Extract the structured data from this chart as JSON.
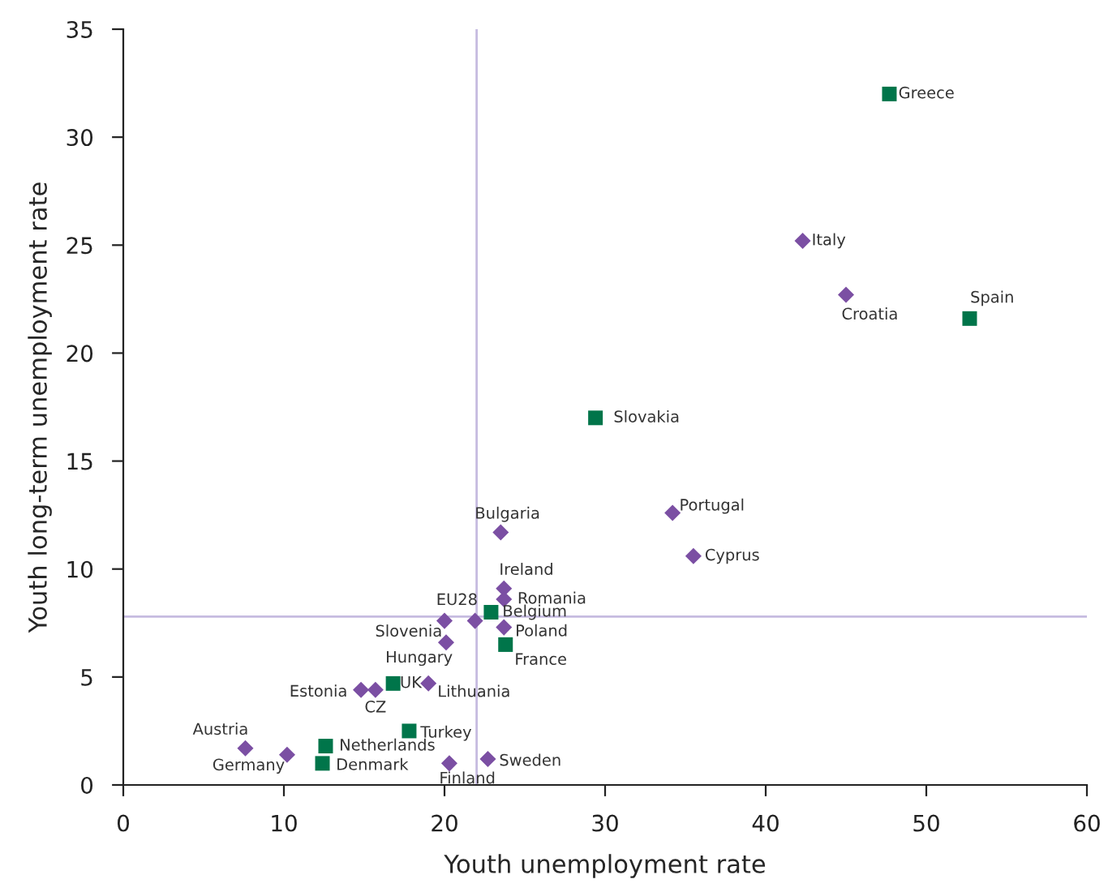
{
  "chart_data": {
    "type": "scatter",
    "xlabel": "Youth unemployment rate",
    "ylabel": "Youth long-term unemployment rate",
    "xlim": [
      0,
      60
    ],
    "xticks": [
      0,
      10,
      20,
      30,
      40,
      50,
      60
    ],
    "ylim": [
      0,
      35
    ],
    "yticks": [
      0,
      5,
      10,
      15,
      20,
      25,
      30,
      35
    ],
    "grid": false,
    "series": [
      {
        "color": "#7b4fa3",
        "marker": "diamond",
        "x": [
          42.3,
          45.0,
          34.2,
          35.5,
          23.5,
          23.7,
          23.7,
          23.7,
          21.9,
          20.0,
          20.1,
          19.0,
          15.7,
          14.8,
          7.6,
          10.2,
          20.3,
          22.7
        ],
        "values": [
          25.2,
          22.7,
          12.6,
          10.6,
          11.7,
          9.1,
          8.6,
          7.3,
          7.6,
          7.6,
          6.6,
          4.7,
          4.4,
          4.4,
          1.7,
          1.4,
          1.0,
          1.2
        ]
      },
      {
        "color": "#00754a",
        "marker": "square",
        "x": [
          47.7,
          52.7,
          29.4,
          22.9,
          23.8,
          16.8,
          17.8,
          12.6,
          12.4
        ],
        "values": [
          32.0,
          21.6,
          17.0,
          8.0,
          6.5,
          4.7,
          2.5,
          1.8,
          1.0
        ]
      }
    ],
    "ref_lines": [
      {
        "axis": "x",
        "value": 22.0,
        "color": "#c6bbe0"
      },
      {
        "axis": "y",
        "value": 7.8,
        "color": "#c6bbe0"
      }
    ],
    "annotations": [
      {
        "text": "Greece",
        "x": 47.7,
        "y": 32.0
      },
      {
        "text": "Italy",
        "x": 42.3,
        "y": 25.2
      },
      {
        "text": "Croatia",
        "x": 45.0,
        "y": 22.7
      },
      {
        "text": "Spain",
        "x": 52.7,
        "y": 21.6
      },
      {
        "text": "Slovakia",
        "x": 29.4,
        "y": 17.0
      },
      {
        "text": "Portugal",
        "x": 34.2,
        "y": 12.6
      },
      {
        "text": "Cyprus",
        "x": 35.5,
        "y": 10.6
      },
      {
        "text": "Bulgaria",
        "x": 23.5,
        "y": 11.7
      },
      {
        "text": "Ireland",
        "x": 23.7,
        "y": 9.1
      },
      {
        "text": "Romania",
        "x": 23.7,
        "y": 8.6
      },
      {
        "text": "Belgium",
        "x": 22.9,
        "y": 8.0
      },
      {
        "text": "Poland",
        "x": 23.7,
        "y": 7.3
      },
      {
        "text": "France",
        "x": 23.8,
        "y": 6.5
      },
      {
        "text": "EU28",
        "x": 21.9,
        "y": 7.6
      },
      {
        "text": "Slovenia",
        "x": 20.0,
        "y": 7.6
      },
      {
        "text": "Hungary",
        "x": 20.1,
        "y": 6.6
      },
      {
        "text": "Lithuania",
        "x": 19.0,
        "y": 4.7
      },
      {
        "text": "UK",
        "x": 16.8,
        "y": 4.7
      },
      {
        "text": "CZ",
        "x": 15.7,
        "y": 4.4
      },
      {
        "text": "Estonia",
        "x": 14.8,
        "y": 4.4
      },
      {
        "text": "Turkey",
        "x": 17.8,
        "y": 2.5
      },
      {
        "text": "Austria",
        "x": 7.6,
        "y": 1.7
      },
      {
        "text": "Germany",
        "x": 10.2,
        "y": 1.4
      },
      {
        "text": "Netherlands",
        "x": 12.6,
        "y": 1.8
      },
      {
        "text": "Denmark",
        "x": 12.4,
        "y": 1.0
      },
      {
        "text": "Finland",
        "x": 20.3,
        "y": 1.0
      },
      {
        "text": "Sweden",
        "x": 22.7,
        "y": 1.2
      }
    ]
  }
}
